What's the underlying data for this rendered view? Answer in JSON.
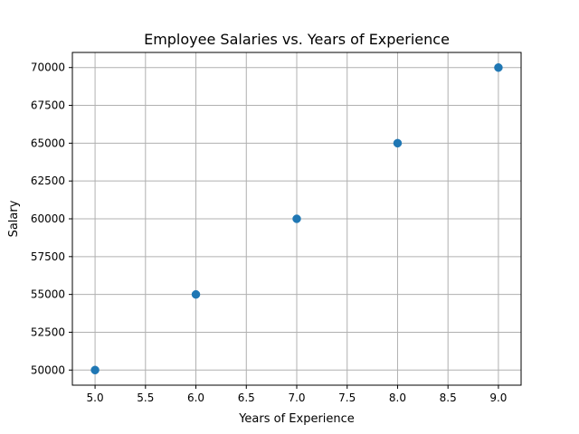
{
  "chart_data": {
    "type": "scatter",
    "title": "Employee Salaries vs. Years of Experience",
    "xlabel": "Years of Experience",
    "ylabel": "Salary",
    "x": [
      5,
      6,
      7,
      8,
      9
    ],
    "y": [
      50000,
      55000,
      60000,
      65000,
      70000
    ],
    "xlim": [
      4.775,
      9.225
    ],
    "ylim": [
      49000,
      71000
    ],
    "xticks": [
      5.0,
      5.5,
      6.0,
      6.5,
      7.0,
      7.5,
      8.0,
      8.5,
      9.0
    ],
    "xtick_labels": [
      "5.0",
      "5.5",
      "6.0",
      "6.5",
      "7.0",
      "7.5",
      "8.0",
      "8.5",
      "9.0"
    ],
    "yticks": [
      50000,
      52500,
      55000,
      57500,
      60000,
      62500,
      65000,
      67500,
      70000
    ],
    "ytick_labels": [
      "50000",
      "52500",
      "55000",
      "57500",
      "60000",
      "62500",
      "65000",
      "67500",
      "70000"
    ],
    "grid": true,
    "colors": {
      "marker": "#1f77b4",
      "grid": "#b0b0b0",
      "axes": "#000000"
    }
  }
}
